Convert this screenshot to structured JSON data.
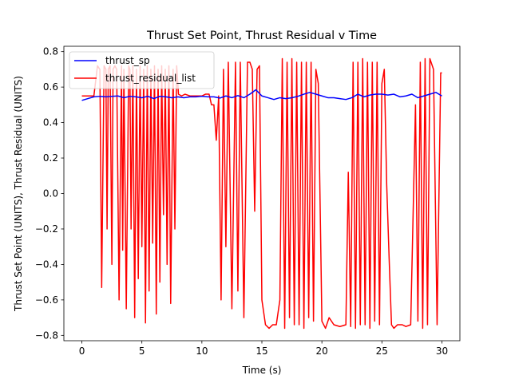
{
  "chart_data": {
    "type": "line",
    "title": "Thrust Set Point, Thrust Residual v Time",
    "xlabel": "Time (s)",
    "ylabel": "Thrust Set Point (UNITS), Thrust Residual (UNITS)",
    "xlim": [
      -1.5,
      31.5
    ],
    "ylim": [
      -0.83,
      0.83
    ],
    "xticks": [
      0,
      5,
      10,
      15,
      20,
      25,
      30
    ],
    "yticks": [
      -0.8,
      -0.6,
      -0.4,
      -0.2,
      0.0,
      0.2,
      0.4,
      0.6,
      0.8
    ],
    "xtick_labels": [
      "0",
      "5",
      "10",
      "15",
      "20",
      "25",
      "30"
    ],
    "ytick_labels": [
      "−0.8",
      "−0.6",
      "−0.4",
      "−0.2",
      "0.0",
      "0.2",
      "0.4",
      "0.6",
      "0.8"
    ],
    "grid": false,
    "legend_position": "top-left",
    "series": [
      {
        "name": "thrust_sp",
        "color": "#0000ff",
        "x": [
          0,
          0.5,
          1,
          1.5,
          2,
          2.5,
          3,
          3.5,
          4,
          4.5,
          5,
          5.5,
          6,
          6.5,
          7,
          7.5,
          8,
          8.5,
          9,
          9.5,
          10,
          10.5,
          11,
          11.5,
          12,
          12.5,
          13,
          13.5,
          14,
          14.5,
          15,
          15.5,
          16,
          16.5,
          17,
          17.5,
          18,
          18.5,
          19,
          19.5,
          20,
          20.5,
          21,
          21.5,
          22,
          22.5,
          23,
          23.5,
          24,
          24.5,
          25,
          25.5,
          26,
          26.5,
          27,
          27.5,
          28,
          28.5,
          29,
          29.5,
          30
        ],
        "values": [
          0.525,
          0.535,
          0.545,
          0.548,
          0.545,
          0.548,
          0.55,
          0.54,
          0.548,
          0.545,
          0.54,
          0.548,
          0.535,
          0.548,
          0.545,
          0.54,
          0.545,
          0.54,
          0.545,
          0.545,
          0.548,
          0.545,
          0.545,
          0.538,
          0.55,
          0.54,
          0.552,
          0.54,
          0.56,
          0.585,
          0.55,
          0.54,
          0.53,
          0.54,
          0.535,
          0.54,
          0.548,
          0.56,
          0.57,
          0.56,
          0.55,
          0.54,
          0.54,
          0.535,
          0.53,
          0.54,
          0.56,
          0.545,
          0.555,
          0.56,
          0.56,
          0.555,
          0.56,
          0.545,
          0.55,
          0.56,
          0.54,
          0.55,
          0.56,
          0.57,
          0.55
        ]
      },
      {
        "name": "thrust_residual_list",
        "color": "#ff0000",
        "x": [
          0,
          1.0,
          1.3,
          1.5,
          1.65,
          1.75,
          1.85,
          2.0,
          2.1,
          2.2,
          2.35,
          2.5,
          2.6,
          2.75,
          2.9,
          3.1,
          3.3,
          3.4,
          3.5,
          3.7,
          3.9,
          4.0,
          4.1,
          4.25,
          4.4,
          4.55,
          4.7,
          4.85,
          5.0,
          5.15,
          5.3,
          5.45,
          5.6,
          5.75,
          5.9,
          6.05,
          6.2,
          6.35,
          6.5,
          6.65,
          6.8,
          6.95,
          7.1,
          7.25,
          7.4,
          7.6,
          7.75,
          7.9,
          8.05,
          8.3,
          8.6,
          9.0,
          9.5,
          10.0,
          10.3,
          10.6,
          10.8,
          11.0,
          11.2,
          11.4,
          11.6,
          11.8,
          12.0,
          12.2,
          12.5,
          12.8,
          13.0,
          13.2,
          13.5,
          13.8,
          14.0,
          14.2,
          14.4,
          14.6,
          14.8,
          15.0,
          15.3,
          15.6,
          15.9,
          16.2,
          16.5,
          16.7,
          16.9,
          17.1,
          17.3,
          17.5,
          17.7,
          17.9,
          18.1,
          18.3,
          18.5,
          18.7,
          18.9,
          19.1,
          19.3,
          19.5,
          19.7,
          20.0,
          20.3,
          20.6,
          21.0,
          21.5,
          22.0,
          22.2,
          22.4,
          22.6,
          22.8,
          23.0,
          23.2,
          23.4,
          23.6,
          23.8,
          24.0,
          24.2,
          24.4,
          24.6,
          24.8,
          25.0,
          25.2,
          25.4,
          25.6,
          25.8,
          26.0,
          26.3,
          26.7,
          27.0,
          27.4,
          27.8,
          28.0,
          28.2,
          28.4,
          28.6,
          28.8,
          29.0,
          29.3,
          29.6,
          29.9,
          30.0
        ],
        "values": [
          0.55,
          0.55,
          0.72,
          0.7,
          -0.53,
          0.12,
          0.72,
          0.7,
          -0.2,
          0.7,
          0.72,
          -0.4,
          0.7,
          0.72,
          0.7,
          -0.6,
          0.72,
          -0.32,
          0.7,
          -0.65,
          0.72,
          0.7,
          -0.2,
          0.72,
          -0.7,
          0.7,
          -0.48,
          0.72,
          -0.3,
          0.7,
          -0.73,
          0.72,
          -0.55,
          0.7,
          -0.28,
          0.72,
          -0.68,
          0.7,
          -0.5,
          0.72,
          -0.12,
          0.7,
          -0.4,
          0.72,
          -0.62,
          0.7,
          -0.2,
          0.72,
          0.56,
          0.55,
          0.56,
          0.55,
          0.55,
          0.55,
          0.56,
          0.56,
          0.5,
          0.5,
          0.3,
          0.55,
          -0.6,
          0.7,
          -0.3,
          0.74,
          -0.65,
          0.74,
          -0.55,
          0.74,
          -0.7,
          0.74,
          0.74,
          0.7,
          -0.1,
          0.7,
          0.72,
          -0.6,
          -0.74,
          -0.76,
          -0.74,
          -0.74,
          -0.6,
          0.76,
          -0.76,
          0.74,
          -0.7,
          0.76,
          -0.74,
          0.74,
          -0.74,
          0.74,
          -0.76,
          0.74,
          -0.7,
          0.74,
          -0.72,
          0.7,
          0.62,
          -0.72,
          -0.76,
          -0.7,
          -0.74,
          -0.75,
          -0.74,
          0.12,
          -0.75,
          0.74,
          -0.76,
          0.74,
          -0.74,
          0.76,
          -0.74,
          0.74,
          -0.76,
          0.74,
          -0.72,
          0.74,
          -0.74,
          0.62,
          0.7,
          0.05,
          -0.36,
          -0.74,
          -0.76,
          -0.74,
          -0.74,
          -0.75,
          -0.74,
          0.5,
          -0.72,
          0.74,
          -0.76,
          0.76,
          -0.74,
          0.76,
          0.7,
          -0.74,
          0.68,
          0.68
        ]
      }
    ]
  }
}
